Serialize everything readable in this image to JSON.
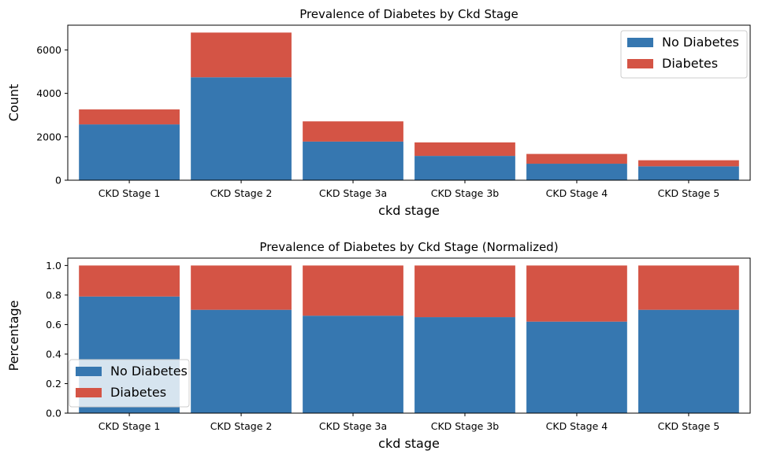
{
  "chart_data": [
    {
      "type": "bar",
      "stacked": true,
      "title": "Prevalence of Diabetes by Ckd Stage",
      "xlabel": "ckd stage",
      "ylabel": "Count",
      "categories": [
        "CKD Stage 1",
        "CKD Stage 2",
        "CKD Stage 3a",
        "CKD Stage 3b",
        "CKD Stage 4",
        "CKD Stage 5"
      ],
      "series": [
        {
          "name": "No Diabetes",
          "values": [
            2570,
            4740,
            1780,
            1120,
            760,
            640
          ]
        },
        {
          "name": "Diabetes",
          "values": [
            690,
            2060,
            930,
            620,
            450,
            280
          ]
        }
      ],
      "ylim": [
        0,
        7140
      ],
      "yticks": [
        0,
        2000,
        4000,
        6000
      ],
      "legend": "top-right",
      "grid": false,
      "colors": [
        "#3677b0",
        "#d45445"
      ]
    },
    {
      "type": "bar",
      "stacked": true,
      "title": "Prevalence of Diabetes by Ckd Stage (Normalized)",
      "xlabel": "ckd stage",
      "ylabel": "Percentage",
      "categories": [
        "CKD Stage 1",
        "CKD Stage 2",
        "CKD Stage 3a",
        "CKD Stage 3b",
        "CKD Stage 4",
        "CKD Stage 5"
      ],
      "series": [
        {
          "name": "No Diabetes",
          "values": [
            0.79,
            0.7,
            0.66,
            0.65,
            0.62,
            0.7
          ]
        },
        {
          "name": "Diabetes",
          "values": [
            0.21,
            0.3,
            0.34,
            0.35,
            0.38,
            0.3
          ]
        }
      ],
      "ylim": [
        0,
        1.05
      ],
      "yticks": [
        0.0,
        0.2,
        0.4,
        0.6,
        0.8,
        1.0
      ],
      "legend": "bottom-left",
      "grid": false,
      "colors": [
        "#3677b0",
        "#d45445"
      ]
    }
  ]
}
